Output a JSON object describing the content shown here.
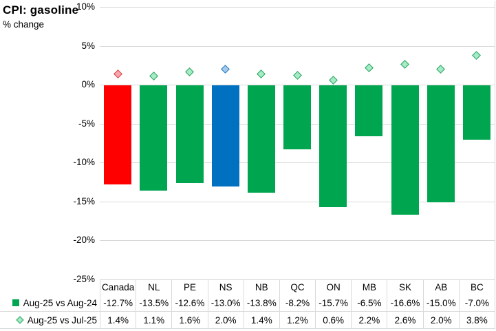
{
  "title": "CPI: gasoline",
  "subtitle": "% change",
  "chart_data": {
    "type": "bar",
    "title": "CPI: gasoline",
    "ylabel": "% change",
    "categories": [
      "Canada",
      "NL",
      "PE",
      "NS",
      "NB",
      "QC",
      "ON",
      "MB",
      "SK",
      "AB",
      "BC"
    ],
    "series": [
      {
        "name": "Aug-25 vs Aug-24",
        "type": "bar",
        "marker": "square",
        "values": [
          -12.7,
          -13.5,
          -12.6,
          -13.0,
          -13.8,
          -8.2,
          -15.7,
          -6.5,
          -16.6,
          -15.0,
          -7.0
        ],
        "labels": [
          "-12.7%",
          "-13.5%",
          "-12.6%",
          "-13.0%",
          "-13.8%",
          "-8.2%",
          "-15.7%",
          "-6.5%",
          "-16.6%",
          "-15.0%",
          "-7.0%"
        ]
      },
      {
        "name": "Aug-25 vs Jul-25",
        "type": "scatter",
        "marker": "diamond",
        "values": [
          1.4,
          1.1,
          1.6,
          2.0,
          1.4,
          1.2,
          0.6,
          2.2,
          2.6,
          2.0,
          3.8
        ],
        "labels": [
          "1.4%",
          "1.1%",
          "1.6%",
          "2.0%",
          "1.4%",
          "1.2%",
          "0.6%",
          "2.2%",
          "2.6%",
          "2.0%",
          "3.8%"
        ]
      }
    ],
    "ylim": [
      -25,
      10
    ],
    "ytick_values": [
      10,
      5,
      0,
      -5,
      -10,
      -15,
      -20,
      -25
    ],
    "ytick_labels": [
      "10%",
      "5%",
      "0%",
      "-5%",
      "-10%",
      "-15%",
      "-20%",
      "-25%"
    ],
    "grid": true,
    "legend_position": "left-of-data-table",
    "bar_colors": [
      "#FF0000",
      "#00A64F",
      "#00A64F",
      "#0070C0",
      "#00A64F",
      "#00A64F",
      "#00A64F",
      "#00A64F",
      "#00A64F",
      "#00A64F",
      "#00A64F"
    ],
    "marker_fills": [
      "#F5A7AF",
      "#A5EBC6",
      "#A5EBC6",
      "#A3C9EC",
      "#A5EBC6",
      "#A5EBC6",
      "#A5EBC6",
      "#A5EBC6",
      "#A5EBC6",
      "#A5EBC6",
      "#A5EBC6"
    ],
    "marker_borders": [
      "#E03A3C",
      "#26A25C",
      "#26A25C",
      "#2479C2",
      "#26A25C",
      "#26A25C",
      "#26A25C",
      "#26A25C",
      "#26A25C",
      "#26A25C",
      "#26A25C"
    ]
  },
  "table": {
    "columns": [
      "Canada",
      "NL",
      "PE",
      "NS",
      "NB",
      "QC",
      "ON",
      "MB",
      "SK",
      "AB",
      "BC"
    ],
    "row_labels": [
      "Aug-25 vs Aug-24",
      "Aug-25 vs Jul-25"
    ],
    "rows": [
      [
        "-12.7%",
        "-13.5%",
        "-12.6%",
        "-13.0%",
        "-13.8%",
        "-8.2%",
        "-15.7%",
        "-6.5%",
        "-16.6%",
        "-15.0%",
        "-7.0%"
      ],
      [
        "1.4%",
        "1.1%",
        "1.6%",
        "2.0%",
        "1.4%",
        "1.2%",
        "0.6%",
        "2.2%",
        "2.6%",
        "2.0%",
        "3.8%"
      ]
    ]
  },
  "colors": {
    "gridline": "#D9D9D9",
    "table_border": "#D9D9D9",
    "legend_square": "#00A64F",
    "legend_diamond_fill": "#A5EBC6",
    "legend_diamond_border": "#26A25C",
    "text": "#000000"
  }
}
